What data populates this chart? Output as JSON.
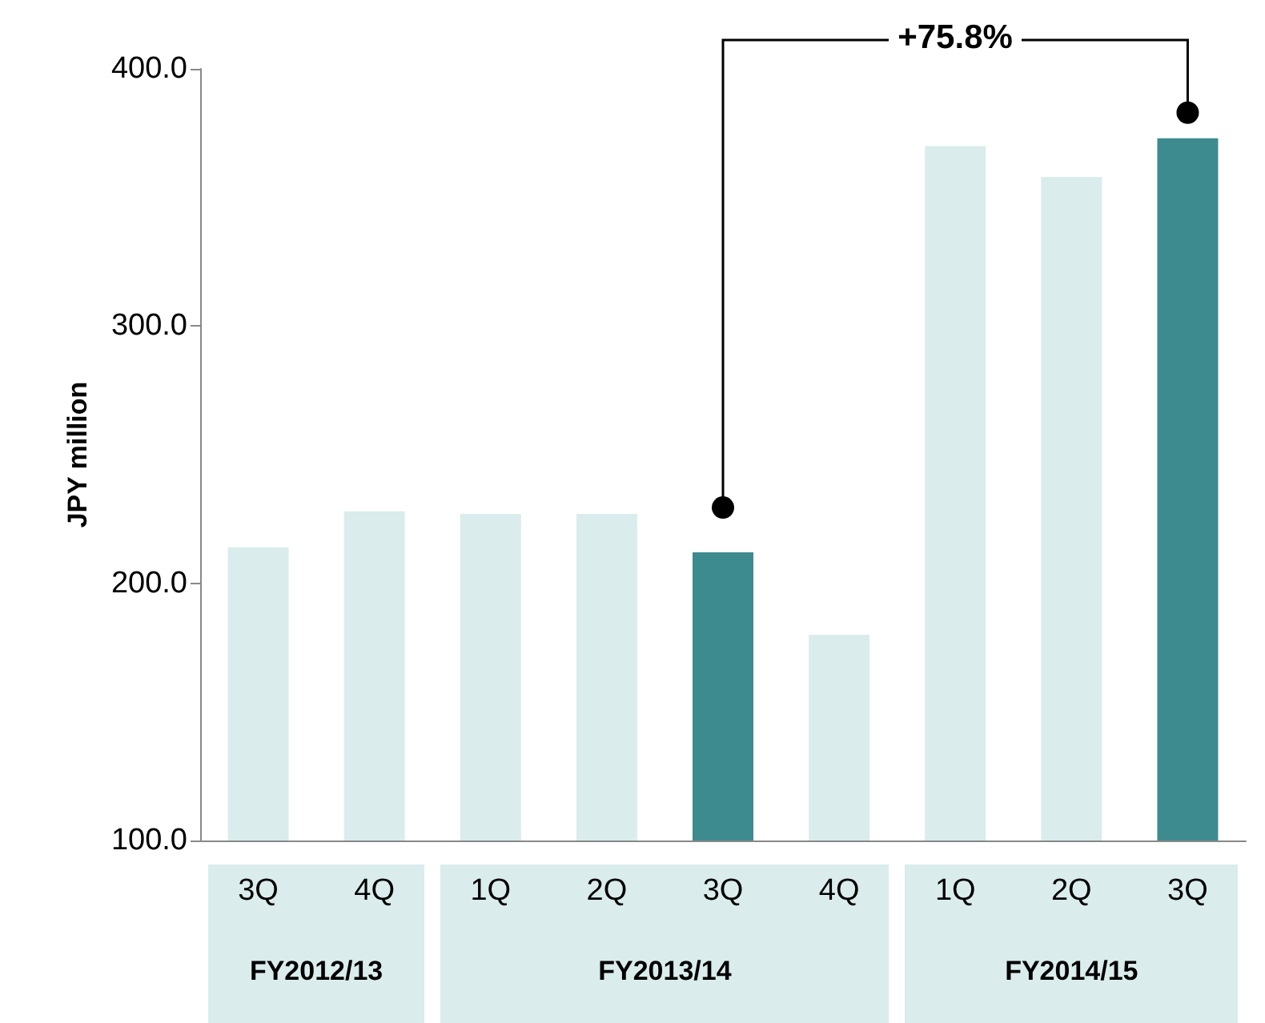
{
  "chart_data": {
    "type": "bar",
    "ylabel": "JPY million",
    "categories": [
      "3Q",
      "4Q",
      "1Q",
      "2Q",
      "3Q",
      "4Q",
      "1Q",
      "2Q",
      "3Q"
    ],
    "values": [
      214,
      228,
      227,
      227,
      212,
      180,
      370,
      358,
      373
    ],
    "colors": [
      "#daecec",
      "#daecec",
      "#daecec",
      "#daecec",
      "#3d8b8f",
      "#daecec",
      "#daecec",
      "#daecec",
      "#3d8b8f"
    ],
    "ylim": [
      100,
      400
    ],
    "yticks": [
      {
        "value": 100,
        "label": "100.0"
      },
      {
        "value": 200,
        "label": "200.0"
      },
      {
        "value": 300,
        "label": "300.0"
      },
      {
        "value": 400,
        "label": "400.0"
      }
    ],
    "grid": false,
    "annotations": [
      "+75.8%",
      "FY2012/13",
      "FY2013/14",
      "FY2014/15"
    ]
  }
}
